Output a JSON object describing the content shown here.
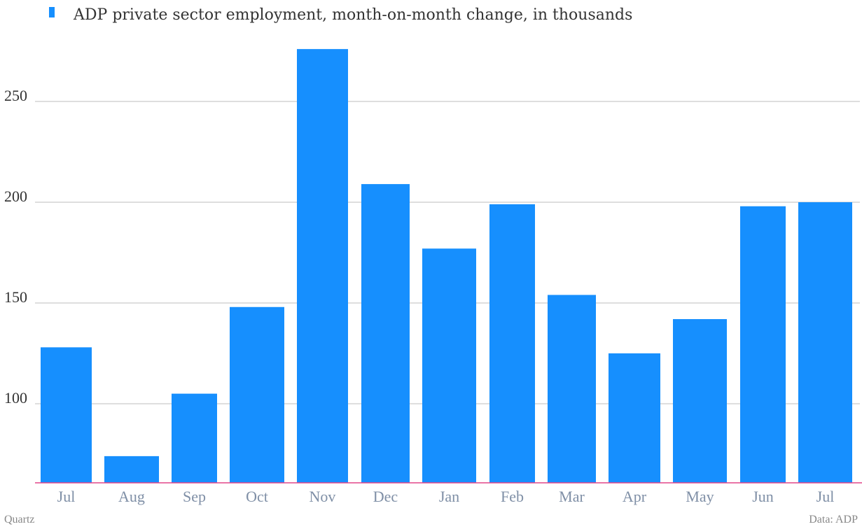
{
  "legend": {
    "label": "ADP private sector employment, month-on-month change, in thousands"
  },
  "footer": {
    "credit": "Quartz",
    "source": "Data: ADP"
  },
  "colors": {
    "bar": "#168ffe",
    "grid": "#bdbdbd",
    "baseline": "#e2478a",
    "legend_marker": "#168ffe"
  },
  "chart_data": {
    "type": "bar",
    "categories": [
      "Jul",
      "Aug",
      "Sep",
      "Oct",
      "Nov",
      "Dec",
      "Jan",
      "Feb",
      "Mar",
      "Apr",
      "May",
      "Jun",
      "Jul"
    ],
    "series": [
      {
        "name": "ADP private sector employment, month-on-month change, in thousands",
        "values": [
          128,
          74,
          105,
          148,
          276,
          209,
          177,
          199,
          154,
          125,
          142,
          198,
          200
        ]
      }
    ],
    "y_ticks": [
      100,
      150,
      200,
      250
    ],
    "ylim": [
      60,
      300
    ],
    "grid": true,
    "legend_position": "top-left"
  }
}
